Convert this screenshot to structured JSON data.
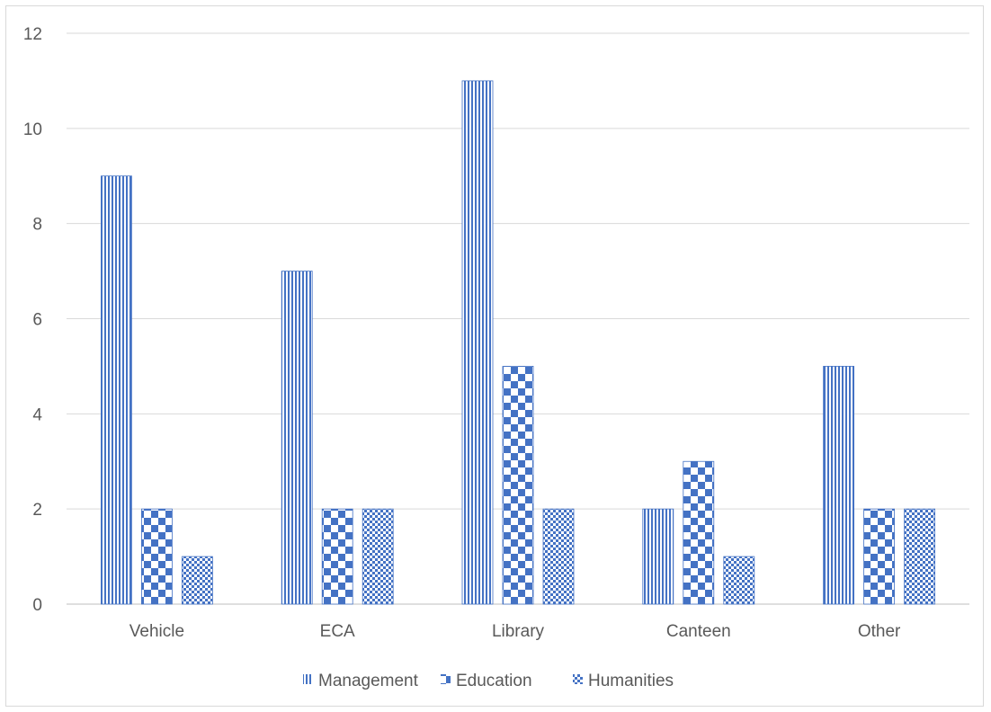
{
  "chart_data": {
    "type": "bar",
    "categories": [
      "Vehicle",
      "ECA",
      "Library",
      "Canteen",
      "Other"
    ],
    "series": [
      {
        "name": "Management",
        "values": [
          9,
          7,
          11,
          2,
          5
        ],
        "pattern": "vertical-stripes",
        "color": "#4472c4"
      },
      {
        "name": "Education",
        "values": [
          2,
          2,
          5,
          3,
          2
        ],
        "pattern": "large-checkerboard",
        "color": "#4472c4"
      },
      {
        "name": "Humanities",
        "values": [
          1,
          2,
          2,
          1,
          2
        ],
        "pattern": "small-checkerboard",
        "color": "#4472c4"
      }
    ],
    "y_ticks": [
      "0",
      "2",
      "4",
      "6",
      "8",
      "10",
      "12"
    ],
    "ylim": [
      0,
      12
    ],
    "title": "",
    "xlabel": "",
    "ylabel": "",
    "grid": true,
    "legend_position": "bottom"
  }
}
